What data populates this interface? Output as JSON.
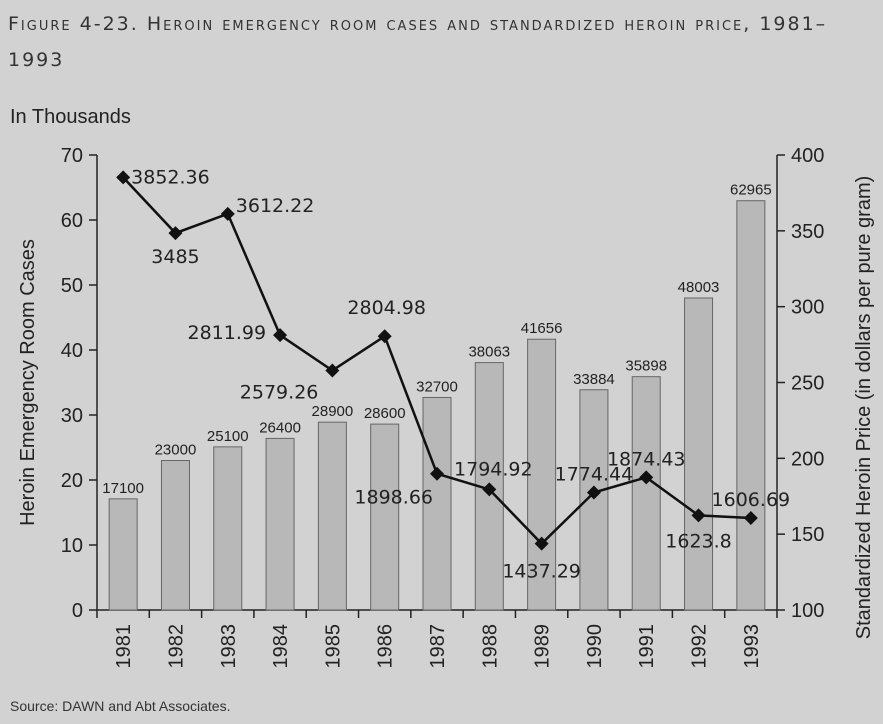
{
  "figure": {
    "title": "Figure 4-23. Heroin emergency room cases and standardized heroin price, 1981–1993",
    "source": "Source: DAWN and Abt Associates."
  },
  "chart_data": {
    "type": "bar",
    "unit_label": "In Thousands",
    "categories": [
      "1981",
      "1982",
      "1983",
      "1984",
      "1985",
      "1986",
      "1987",
      "1988",
      "1989",
      "1990",
      "1991",
      "1992",
      "1993"
    ],
    "series": [
      {
        "name": "Heroin Emergency Room Cases",
        "type": "bar",
        "axis": "left",
        "values": [
          17100,
          23000,
          25100,
          26400,
          28900,
          28600,
          32700,
          38063,
          41656,
          33884,
          35898,
          48003,
          62965
        ]
      },
      {
        "name": "Standardized Heroin Price",
        "type": "line",
        "axis": "right",
        "marker": "diamond",
        "values": [
          3852.36,
          3485,
          3612.22,
          2811.99,
          2579.26,
          2804.98,
          1898.66,
          1794.92,
          1437.29,
          1774.44,
          1874.43,
          1623.8,
          1606.69
        ]
      }
    ],
    "ylabel_left": "Heroin Emergency Room Cases",
    "ylabel_right": "Standardized Heroin Price (in dollars per pure gram)",
    "ylim_left": [
      0,
      70
    ],
    "yticks_left": [
      0,
      10,
      20,
      30,
      40,
      50,
      60,
      70
    ],
    "ylim_right": [
      100,
      400
    ],
    "yticks_right": [
      100,
      150,
      200,
      250,
      300,
      350,
      400
    ],
    "grid": false,
    "colors": {
      "bar_fill": "#b8b8b8",
      "bar_stroke": "#666666",
      "line": "#111111",
      "marker": "#111111",
      "background": "#d2d2d2"
    }
  }
}
